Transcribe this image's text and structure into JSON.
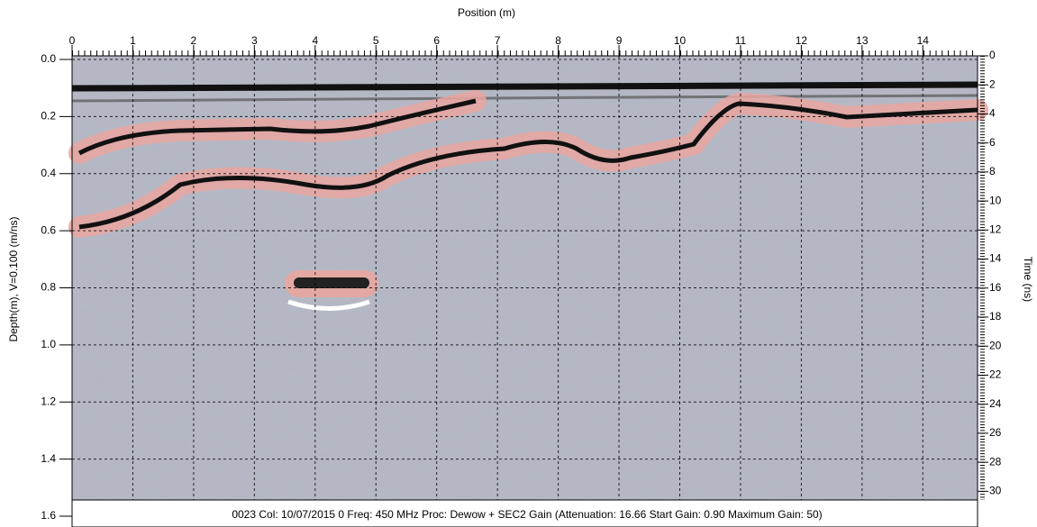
{
  "chart_data": {
    "type": "radargram",
    "x_label": "Position (m)",
    "y_label": "Depth(m), V=0.100 (m/ns)",
    "y2_label": "Time (ns)",
    "footer": "0023  Col: 10/07/2015 0 Freq: 450 MHz Proc: Dewow + SEC2 Gain (Attenuation: 16.66 Start Gain: 0.90 Maximum Gain: 50)",
    "xlim": [
      0,
      14.9
    ],
    "xticks": [
      0,
      1,
      2,
      3,
      4,
      5,
      6,
      7,
      8,
      9,
      10,
      11,
      12,
      13,
      14
    ],
    "ylim": [
      0,
      1.6
    ],
    "yticks": [
      {
        "value": 0,
        "label": "0.0"
      },
      0.2,
      0.4,
      0.6,
      0.8,
      {
        "value": 1,
        "label": "1.0"
      },
      1.2,
      1.4,
      1.6
    ],
    "y2lim": [
      0,
      30.6
    ],
    "y2ticks": [
      0,
      2,
      4,
      6,
      8,
      10,
      12,
      14,
      16,
      18,
      20,
      22,
      24,
      26,
      28,
      30
    ],
    "grid": true
  }
}
